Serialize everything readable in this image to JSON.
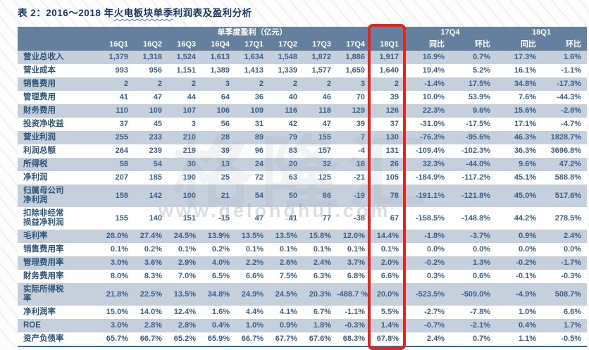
{
  "title": {
    "prefix": "表 2：2016～2018 年",
    "highlight": "火电板块单季",
    "suffix": "利润表及盈利分析"
  },
  "watermark": {
    "logo": "格隆汇",
    "url": "www.gelonghui.com"
  },
  "colors": {
    "header_bg": "#64809e",
    "row_alt": "#c6d0dd",
    "cell_text": "#3a6087",
    "label_text": "#2d5577",
    "title_text": "#16375f",
    "highlight_red": "#e5251c",
    "border_blue": "#2e6da4"
  },
  "table": {
    "group_headers": {
      "quarterly": "单季度盈利（亿元）",
      "g17q4": "17Q4",
      "g18q1": "18Q1"
    },
    "columns": [
      "16Q1",
      "16Q2",
      "16Q3",
      "16Q4",
      "17Q1",
      "17Q2",
      "17Q3",
      "17Q4",
      "18Q1",
      "同比",
      "环比",
      "同比",
      "环比"
    ],
    "highlighted_column": "18Q1",
    "rows": [
      {
        "label": "营业总收入",
        "values": [
          "1,379",
          "1,318",
          "1,524",
          "1,613",
          "1,634",
          "1,548",
          "1,872",
          "1,886",
          "1,917",
          "16.9%",
          "0.7%",
          "17.3%",
          "1.6%"
        ]
      },
      {
        "label": "营业成本",
        "values": [
          "993",
          "956",
          "1,151",
          "1,389",
          "1,413",
          "1,339",
          "1,577",
          "1,659",
          "1,640",
          "19.4%",
          "5.2%",
          "16.1%",
          "-1.1%"
        ]
      },
      {
        "label": "销售费用",
        "values": [
          "2",
          "2",
          "2",
          "3",
          "2",
          "2",
          "2",
          "3",
          "2",
          "-1.4%",
          "17.5%",
          "34.8%",
          "-17.3%"
        ]
      },
      {
        "label": "管理费用",
        "values": [
          "41",
          "47",
          "44",
          "64",
          "36",
          "40",
          "46",
          "70",
          "39",
          "10.0%",
          "53.9%",
          "7.6%",
          "-44.3%"
        ]
      },
      {
        "label": "财务费用",
        "values": [
          "110",
          "109",
          "107",
          "106",
          "109",
          "116",
          "118",
          "129",
          "126",
          "22.3%",
          "9.6%",
          "15.6%",
          "-2.8%"
        ]
      },
      {
        "label": "投资净收益",
        "values": [
          "37",
          "45",
          "3",
          "56",
          "31",
          "42",
          "47",
          "39",
          "37",
          "-31.0%",
          "-17.5%",
          "17.1%",
          "-4.7%"
        ]
      },
      {
        "label": "营业利润",
        "values": [
          "255",
          "233",
          "210",
          "28",
          "89",
          "79",
          "155",
          "7",
          "130",
          "-76.3%",
          "-95.6%",
          "46.3%",
          "1828.7%"
        ]
      },
      {
        "label": "利润总额",
        "values": [
          "264",
          "239",
          "219",
          "39",
          "96",
          "83",
          "157",
          "-4",
          "131",
          "-109.4%",
          "-102.3%",
          "36.3%",
          "3696.8%"
        ]
      },
      {
        "label": "所得税",
        "values": [
          "58",
          "54",
          "30",
          "13",
          "24",
          "20",
          "32",
          "18",
          "26",
          "32.3%",
          "-44.0%",
          "9.6%",
          "47.2%"
        ]
      },
      {
        "label": "净利润",
        "values": [
          "207",
          "185",
          "190",
          "25",
          "72",
          "63",
          "125",
          "-21",
          "105",
          "-184.9%",
          "-117.2%",
          "45.1%",
          "588.8%"
        ]
      },
      {
        "label": "归属母公司净利润",
        "values": [
          "158",
          "142",
          "100",
          "21",
          "54",
          "50",
          "86",
          "-19",
          "78",
          "-191.1%",
          "-121.8%",
          "45.0%",
          "517.6%"
        ]
      },
      {
        "label": "扣除非经常损益净利润",
        "values": [
          "155",
          "140",
          "151",
          "-15",
          "47",
          "41",
          "77",
          "-38",
          "67",
          "-158.5%",
          "-148.8%",
          "44.2%",
          "278.5%"
        ]
      },
      {
        "label": "毛利率",
        "values": [
          "28.0%",
          "27.4%",
          "24.5%",
          "13.9%",
          "13.5%",
          "13.5%",
          "15.8%",
          "12.0%",
          "14.4%",
          "-1.8%",
          "-3.7%",
          "0.9%",
          "2.4%"
        ]
      },
      {
        "label": "销售费用率",
        "values": [
          "0.1%",
          "0.2%",
          "0.1%",
          "0.2%",
          "0.1%",
          "0.1%",
          "0.1%",
          "0.1%",
          "0.1%",
          "0.0%",
          "0.0%",
          "0.0%",
          "0.0%"
        ]
      },
      {
        "label": "管理费用率",
        "values": [
          "3.0%",
          "3.6%",
          "2.9%",
          "4.0%",
          "2.2%",
          "2.6%",
          "2.4%",
          "3.7%",
          "2.0%",
          "-0.2%",
          "1.3%",
          "-0.2%",
          "-1.7%"
        ]
      },
      {
        "label": "财务费用率",
        "values": [
          "8.0%",
          "8.3%",
          "7.0%",
          "6.5%",
          "6.6%",
          "7.5%",
          "6.3%",
          "6.8%",
          "6.6%",
          "0.3%",
          "0.6%",
          "-0.1%",
          "-0.3%"
        ]
      },
      {
        "label": "实际所得税率",
        "values": [
          "21.8%",
          "22.5%",
          "13.5%",
          "34.8%",
          "24.9%",
          "24.5%",
          "20.3%",
          "-488.7 %",
          "20.0%",
          "-523.5%",
          "-509.0%",
          "-4.9%",
          "508.7%"
        ]
      },
      {
        "label": "净利润率",
        "values": [
          "15.0%",
          "14.0%",
          "12.4%",
          "1.6%",
          "4.4%",
          "4.1%",
          "6.7%",
          "-1.1%",
          "5.5%",
          "-2.7%",
          "-7.8%",
          "1.0%",
          "6.6%"
        ]
      },
      {
        "label": "ROE",
        "values": [
          "3.0%",
          "2.8%",
          "2.8%",
          "0.4%",
          "1.0%",
          "0.9%",
          "1.8%",
          "-0.3%",
          "1.4%",
          "-0.7%",
          "-2.1%",
          "0.4%",
          "1.7%"
        ]
      },
      {
        "label": "资产负债率",
        "values": [
          "65.7%",
          "66.7%",
          "65.2%",
          "65.9%",
          "66.7%",
          "67.7%",
          "67.6%",
          "68.3%",
          "67.8%",
          "2.4%",
          "0.7%",
          "1.1%",
          "-0.5%"
        ]
      }
    ]
  }
}
